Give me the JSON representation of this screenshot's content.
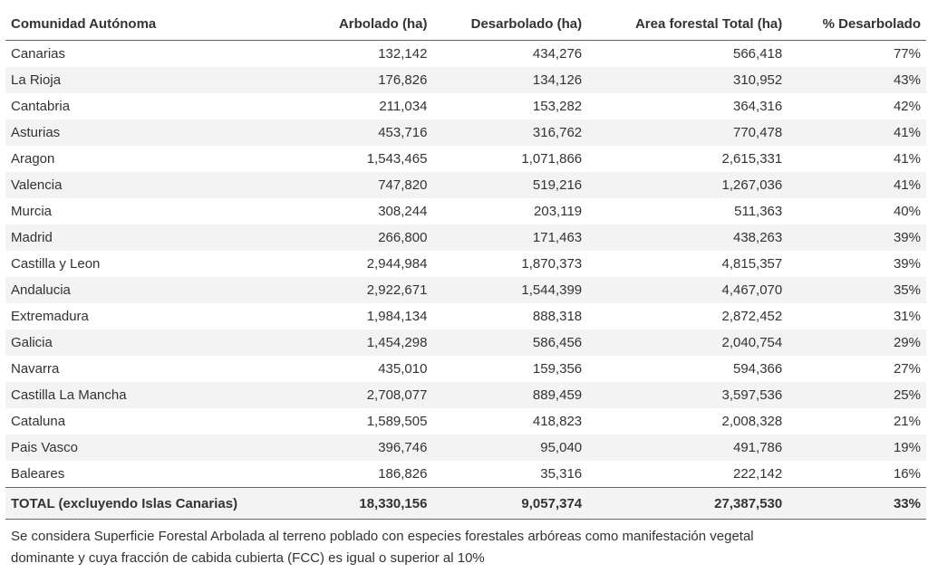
{
  "table": {
    "header": [
      "Comunidad Autónoma",
      "Arbolado (ha)",
      "Desarbolado (ha)",
      "Area forestal Total (ha)",
      "% Desarbolado"
    ],
    "rows": [
      [
        "Canarias",
        "132,142",
        "434,276",
        "566,418",
        "77%"
      ],
      [
        "La Rioja",
        "176,826",
        "134,126",
        "310,952",
        "43%"
      ],
      [
        "Cantabria",
        "211,034",
        "153,282",
        "364,316",
        "42%"
      ],
      [
        "Asturias",
        "453,716",
        "316,762",
        "770,478",
        "41%"
      ],
      [
        "Aragon",
        "1,543,465",
        "1,071,866",
        "2,615,331",
        "41%"
      ],
      [
        "Valencia",
        "747,820",
        "519,216",
        "1,267,036",
        "41%"
      ],
      [
        "Murcia",
        "308,244",
        "203,119",
        "511,363",
        "40%"
      ],
      [
        "Madrid",
        "266,800",
        "171,463",
        "438,263",
        "39%"
      ],
      [
        "Castilla y Leon",
        "2,944,984",
        "1,870,373",
        "4,815,357",
        "39%"
      ],
      [
        "Andalucia",
        "2,922,671",
        "1,544,399",
        "4,467,070",
        "35%"
      ],
      [
        "Extremadura",
        "1,984,134",
        "888,318",
        "2,872,452",
        "31%"
      ],
      [
        "Galicia",
        "1,454,298",
        "586,456",
        "2,040,754",
        "29%"
      ],
      [
        "Navarra",
        "435,010",
        "159,356",
        "594,366",
        "27%"
      ],
      [
        "Castilla La Mancha",
        "2,708,077",
        "889,459",
        "3,597,536",
        "25%"
      ],
      [
        "Cataluna",
        "1,589,505",
        "418,823",
        "2,008,328",
        "21%"
      ],
      [
        "Pais Vasco",
        "396,746",
        "95,040",
        "491,786",
        "19%"
      ],
      [
        "Baleares",
        "186,826",
        "35,316",
        "222,142",
        "16%"
      ]
    ],
    "total": [
      "TOTAL (excluyendo Islas Canarias)",
      "18,330,156",
      "9,057,374",
      "27,387,530",
      "33%"
    ]
  },
  "note": [
    "Se considera Superficie Forestal Arbolada al terreno poblado con especies forestales arbóreas como manifestación vegetal",
    "dominante y cuya fracción de cabida cubierta (FCC) es igual o superior al 10%"
  ]
}
